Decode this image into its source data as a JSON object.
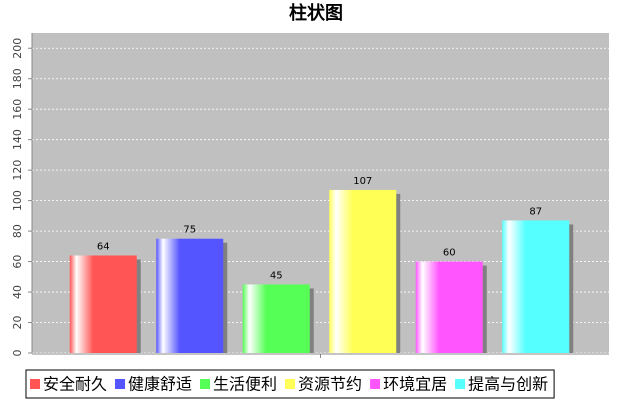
{
  "chart_data": {
    "type": "bar",
    "title": "柱状图",
    "categories": [
      null
    ],
    "series": [
      {
        "name": "安全耐久",
        "color": "#ff5555",
        "values": [
          64
        ]
      },
      {
        "name": "健康舒适",
        "color": "#5555ff",
        "values": [
          75
        ]
      },
      {
        "name": "生活便利",
        "color": "#55ff55",
        "values": [
          45
        ]
      },
      {
        "name": "资源节约",
        "color": "#ffff55",
        "values": [
          107
        ]
      },
      {
        "name": "环境宜居",
        "color": "#ff55ff",
        "values": [
          60
        ]
      },
      {
        "name": "提高与创新",
        "color": "#55ffff",
        "values": [
          87
        ]
      }
    ],
    "ylim": [
      0,
      210
    ],
    "yticks": [
      0,
      20,
      40,
      60,
      80,
      100,
      120,
      140,
      160,
      180,
      200
    ],
    "grid": true,
    "legend": "bottom"
  }
}
